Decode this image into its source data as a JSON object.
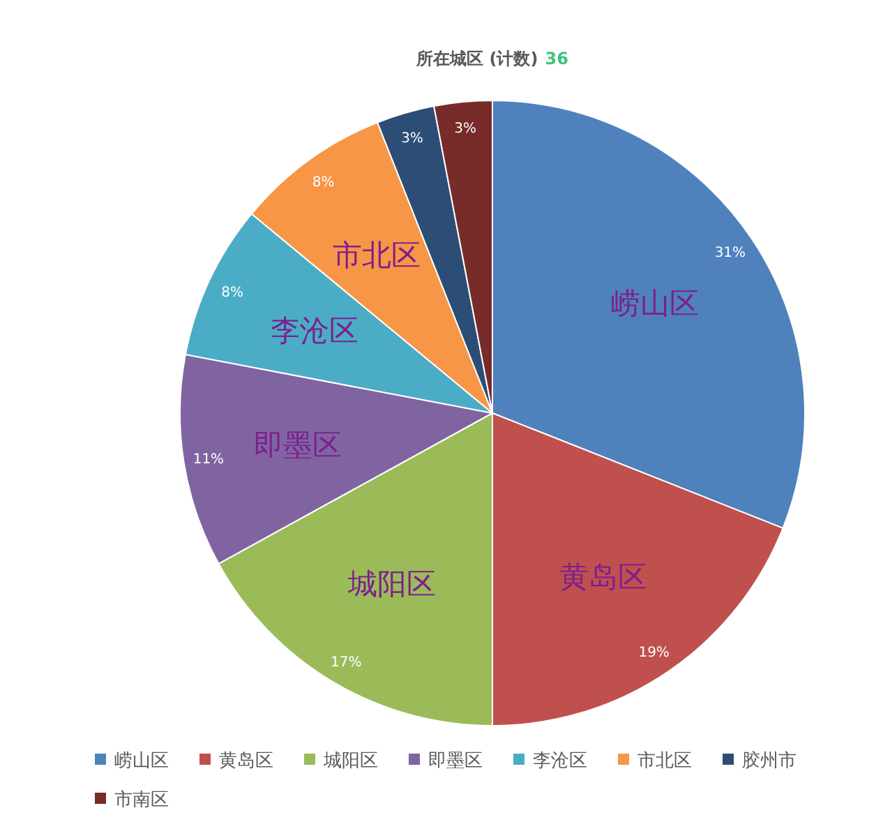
{
  "chart_data": {
    "type": "pie",
    "title": "所在城区 (计数)",
    "subtitle": "36",
    "categories": [
      "崂山区",
      "黄岛区",
      "城阳区",
      "即墨区",
      "李沧区",
      "市北区",
      "胶州市",
      "市南区"
    ],
    "values": [
      31,
      19,
      17,
      11,
      8,
      8,
      3,
      3
    ],
    "colors": [
      "#4f81bd",
      "#c0504d",
      "#9bbb59",
      "#8064a2",
      "#4bacc6",
      "#f79646",
      "#2c4d75",
      "#772c2a"
    ],
    "value_labels": [
      "31%",
      "19%",
      "17%",
      "11%",
      "8%",
      "8%",
      "3%",
      "3%"
    ],
    "annotations": [
      "崂山区",
      "黄岛区",
      "城阳区",
      "即墨区",
      "李沧区",
      "市北区"
    ],
    "legend": "bottom"
  }
}
